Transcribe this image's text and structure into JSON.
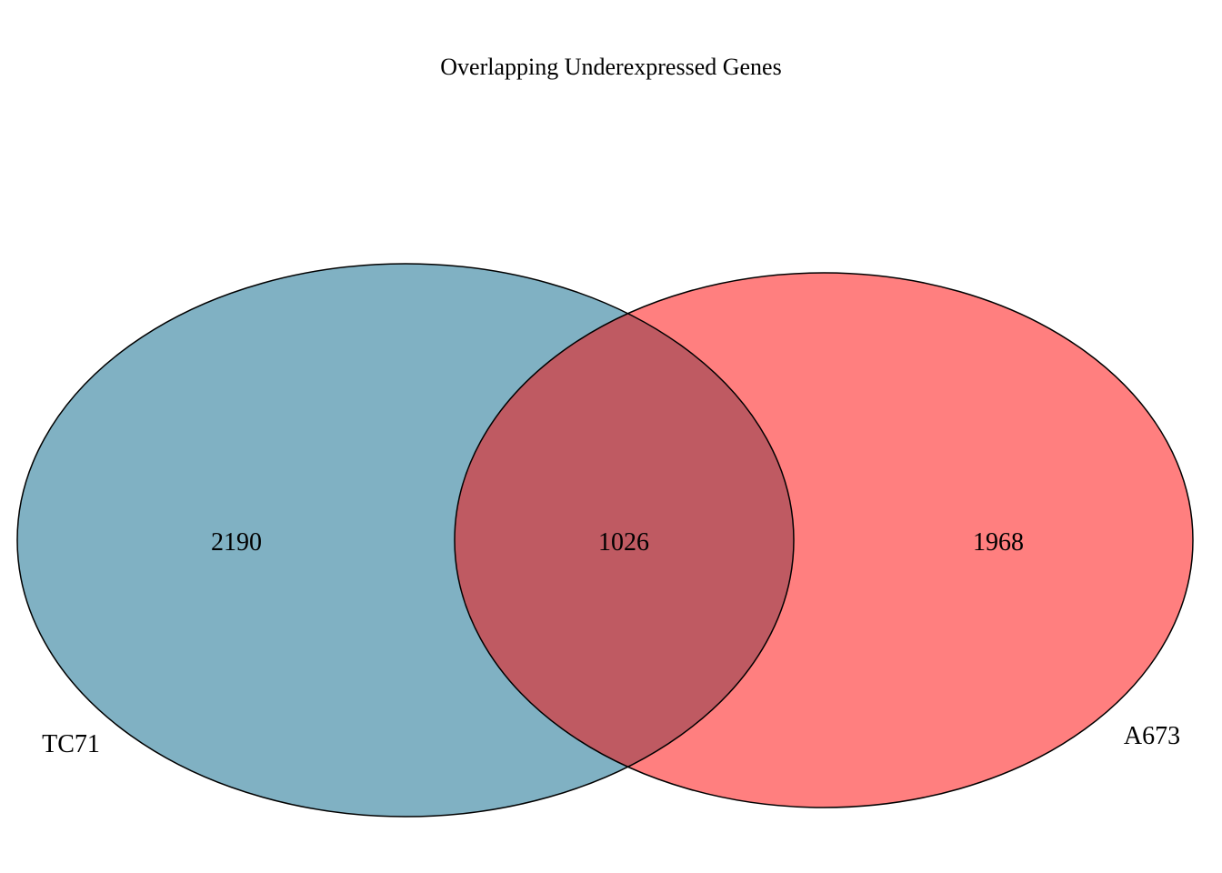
{
  "title": "Overlapping Underexpressed Genes",
  "sets": [
    {
      "name": "TC71",
      "only_count": "2190",
      "fill_color": "#80b1c3"
    },
    {
      "name": "A673",
      "only_count": "1968",
      "fill_color": "#ff7f7f"
    }
  ],
  "intersection": {
    "count": "1026",
    "fill_color": "#bf5a62"
  },
  "outline_color": "#000000"
}
